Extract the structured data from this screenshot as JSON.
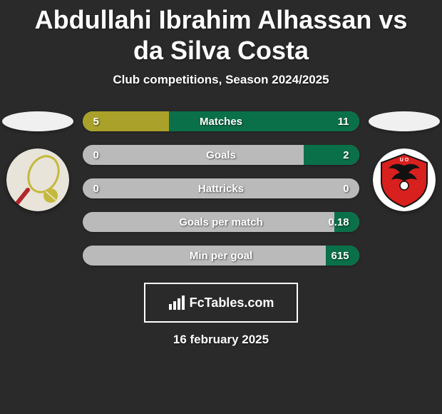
{
  "title": "Abdullahi Ibrahim Alhassan vs da Silva Costa",
  "title_fontsize": 36,
  "subtitle": "Club competitions, Season 2024/2025",
  "subtitle_fontsize": 17,
  "date": "16 february 2025",
  "date_fontsize": 17,
  "brand": "FcTables.com",
  "brand_fontsize": 18,
  "colors": {
    "background": "#2a2a2a",
    "bar_bg": "#bababa",
    "left_fill": "#a9a12a",
    "right_fill": "#0a704a",
    "text": "#ffffff"
  },
  "bars": {
    "label_fontsize": 15,
    "value_fontsize": 15,
    "height": 28,
    "items": [
      {
        "label": "Matches",
        "left_value": "5",
        "right_value": "11",
        "left_pct": 31.25,
        "right_pct": 68.75
      },
      {
        "label": "Goals",
        "left_value": "0",
        "right_value": "2",
        "left_pct": 0,
        "right_pct": 20
      },
      {
        "label": "Hattricks",
        "left_value": "0",
        "right_value": "0",
        "left_pct": 0,
        "right_pct": 0
      },
      {
        "label": "Goals per match",
        "left_value": "",
        "right_value": "0.18",
        "left_pct": 0,
        "right_pct": 9
      },
      {
        "label": "Min per goal",
        "left_value": "",
        "right_value": "615",
        "left_pct": 0,
        "right_pct": 12
      }
    ]
  },
  "badges": {
    "left": {
      "name": "club-badge-left",
      "bg": "#e8e4da",
      "accent": "#c4b93a"
    },
    "right": {
      "name": "club-badge-right",
      "bg": "#d8201e",
      "accent": "#111111"
    }
  }
}
